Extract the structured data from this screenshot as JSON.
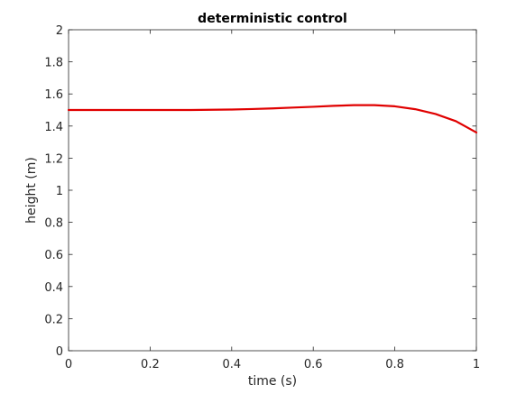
{
  "chart_data": {
    "type": "line",
    "title": "deterministic control",
    "xlabel": "time (s)",
    "ylabel": "height (m)",
    "xlim": [
      0,
      1
    ],
    "ylim": [
      0,
      2
    ],
    "xticks": [
      0,
      0.2,
      0.4,
      0.6,
      0.8,
      1
    ],
    "xtick_labels": [
      "0",
      "0.2",
      "0.4",
      "0.6",
      "0.8",
      "1"
    ],
    "yticks": [
      0,
      0.2,
      0.4,
      0.6,
      0.8,
      1,
      1.2,
      1.4,
      1.6,
      1.8,
      2
    ],
    "ytick_labels": [
      "0",
      "0.2",
      "0.4",
      "0.6",
      "0.8",
      "1",
      "1.2",
      "1.4",
      "1.6",
      "1.8",
      "2"
    ],
    "grid": false,
    "series": [
      {
        "color": "#e00000",
        "x": [
          0,
          0.1,
          0.2,
          0.3,
          0.4,
          0.45,
          0.5,
          0.55,
          0.6,
          0.65,
          0.7,
          0.75,
          0.8,
          0.85,
          0.9,
          0.95,
          1.0
        ],
        "y": [
          1.5,
          1.5,
          1.5,
          1.5,
          1.503,
          1.506,
          1.51,
          1.515,
          1.52,
          1.526,
          1.53,
          1.53,
          1.523,
          1.505,
          1.475,
          1.43,
          1.36
        ]
      }
    ]
  }
}
